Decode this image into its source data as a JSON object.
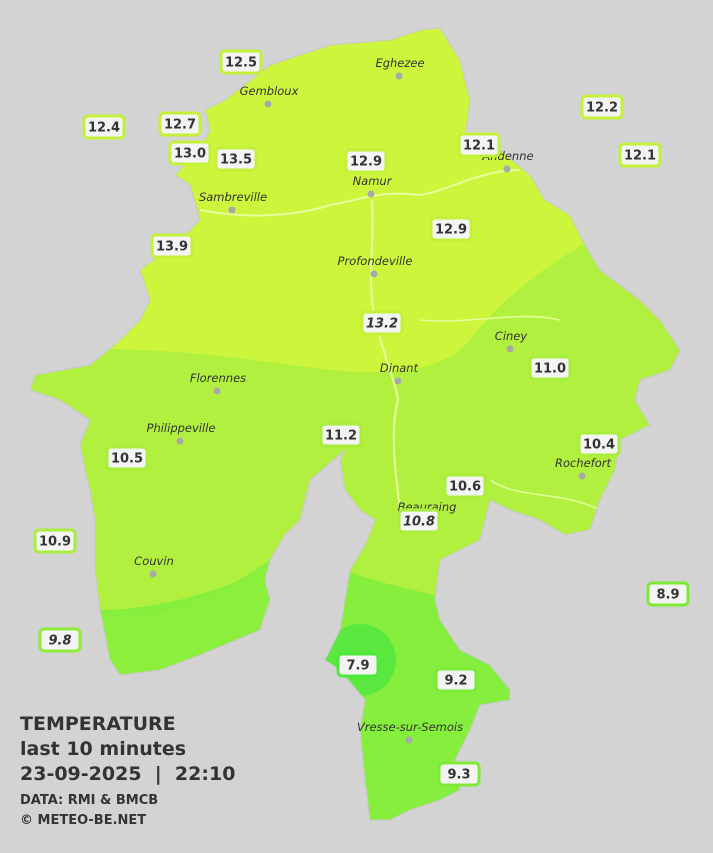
{
  "map": {
    "towns": [
      "Eghezee",
      "Gembloux",
      "Andenne",
      "Namur",
      "Sambreville",
      "Profondeville",
      "Ciney",
      "Dinant",
      "Florennes",
      "Philippeville",
      "Rochefort",
      "Beauraing",
      "Couvin",
      "Vresse-sur-Semois"
    ],
    "readings": [
      {
        "label": "12.5",
        "color": "#c4f03a"
      },
      {
        "label": "12.4",
        "color": "#c4f03a"
      },
      {
        "label": "12.7",
        "color": "#c4f03a"
      },
      {
        "label": "13.0",
        "color": "#c4f03a"
      },
      {
        "label": "13.5",
        "color": "#c4f03a"
      },
      {
        "label": "12.9",
        "color": "#c4f03a"
      },
      {
        "label": "12.1",
        "color": "#c4f03a"
      },
      {
        "label": "12.2",
        "color": "#c4f03a"
      },
      {
        "label": "12.1",
        "color": "#c4f03a"
      },
      {
        "label": "12.9",
        "color": "#c4f03a"
      },
      {
        "label": "13.9",
        "color": "#c4f03a"
      },
      {
        "label": "13.2",
        "color": "#c4f03a",
        "italic": true
      },
      {
        "label": "11.0",
        "color": "#a8ee3a"
      },
      {
        "label": "11.2",
        "color": "#a8ee3a"
      },
      {
        "label": "10.5",
        "color": "#a8ee3a"
      },
      {
        "label": "10.4",
        "color": "#a8ee3a"
      },
      {
        "label": "10.6",
        "color": "#a8ee3a"
      },
      {
        "label": "10.8",
        "color": "#a8ee3a",
        "italic": true
      },
      {
        "label": "10.9",
        "color": "#a8ee3a"
      },
      {
        "label": "8.9",
        "color": "#7eea38"
      },
      {
        "label": "9.8",
        "color": "#8eec38",
        "italic": true
      },
      {
        "label": "7.9",
        "color": "#4ee83a"
      },
      {
        "label": "9.2",
        "color": "#7eea38"
      },
      {
        "label": "9.3",
        "color": "#7eea38"
      }
    ],
    "legend": {
      "title": "TEMPERATURE",
      "period": "last 10 minutes",
      "timestamp": "23-09-2025  |  22:10",
      "source": "DATA: RMI & BMCB",
      "credit": "© METEO-BE.NET"
    }
  }
}
